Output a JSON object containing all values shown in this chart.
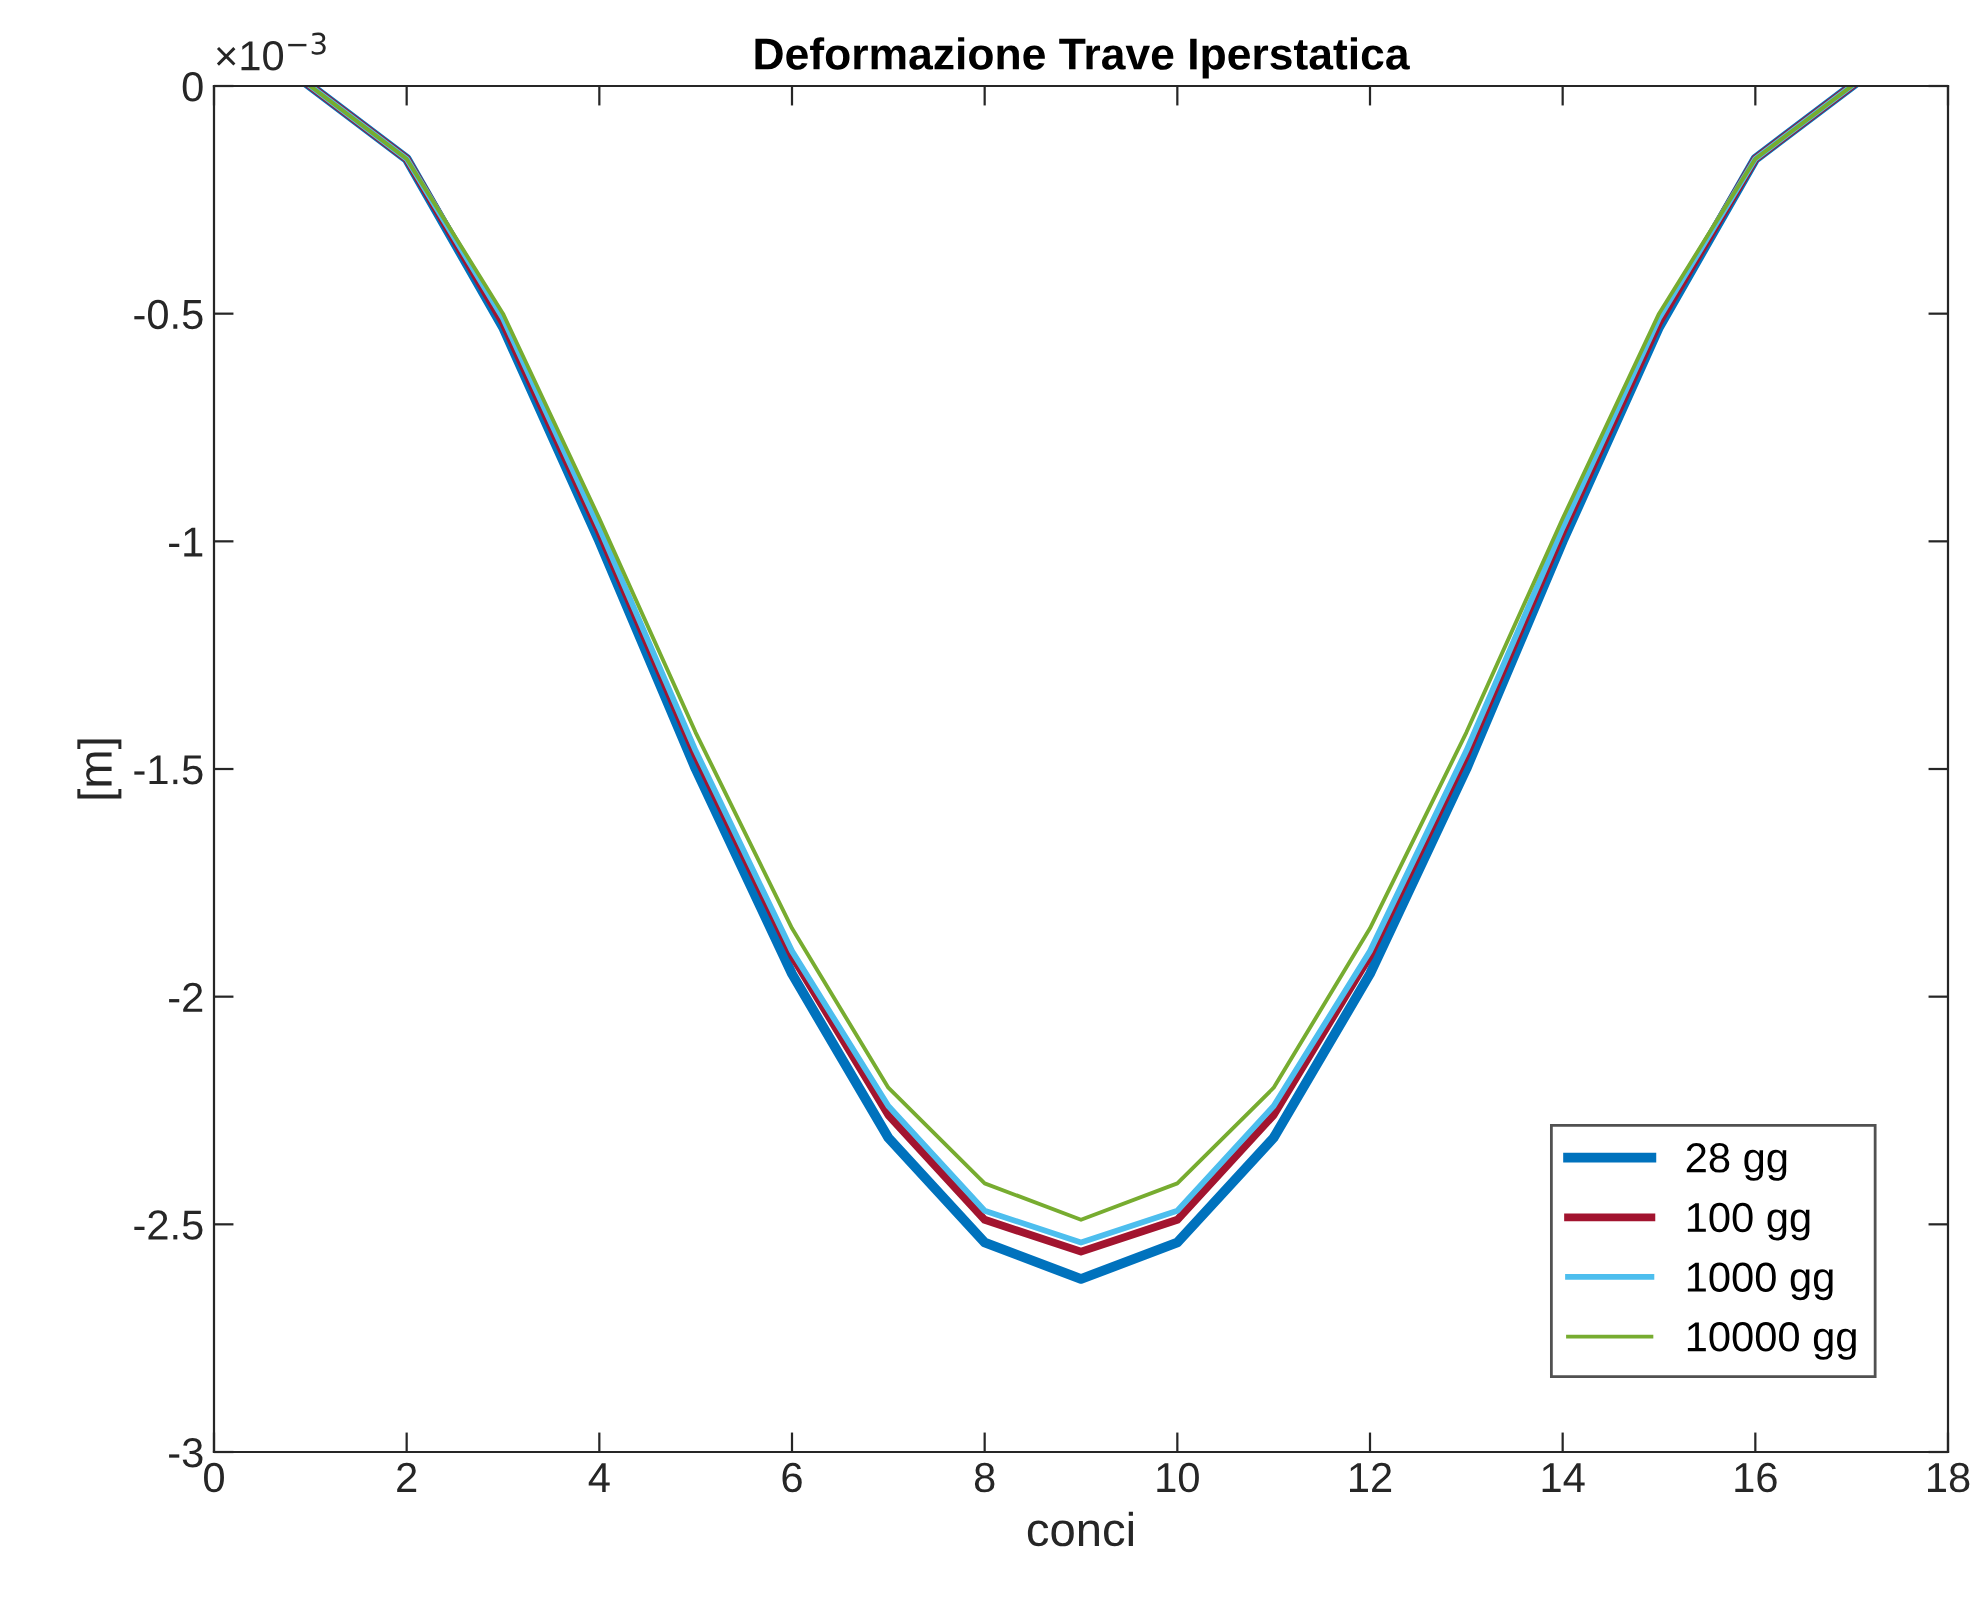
{
  "chart_data": {
    "type": "line",
    "title": "Deformazione Trave Iperstatica",
    "xlabel": "conci",
    "ylabel": "[m]",
    "x": [
      1,
      2,
      3,
      4,
      5,
      6,
      7,
      8,
      9,
      10,
      11,
      12,
      13,
      14,
      15,
      16,
      17
    ],
    "series": [
      {
        "name": "28 gg",
        "color": "#0072bd",
        "values": [
          0,
          -0.16,
          -0.53,
          -1.0,
          -1.5,
          -1.95,
          -2.31,
          -2.54,
          -2.62,
          -2.54,
          -2.31,
          -1.95,
          -1.5,
          -1.0,
          -0.53,
          -0.16,
          0
        ]
      },
      {
        "name": "100 gg",
        "color": "#a2142f",
        "values": [
          0,
          -0.16,
          -0.52,
          -0.98,
          -1.47,
          -1.91,
          -2.26,
          -2.49,
          -2.56,
          -2.49,
          -2.26,
          -1.91,
          -1.47,
          -0.98,
          -0.52,
          -0.16,
          0
        ]
      },
      {
        "name": "1000 gg",
        "color": "#4dbeee",
        "values": [
          0,
          -0.16,
          -0.51,
          -0.97,
          -1.46,
          -1.9,
          -2.24,
          -2.47,
          -2.54,
          -2.47,
          -2.24,
          -1.9,
          -1.46,
          -0.97,
          -0.51,
          -0.16,
          0
        ]
      },
      {
        "name": "10000 gg",
        "color": "#77ac30",
        "values": [
          0,
          -0.16,
          -0.5,
          -0.95,
          -1.42,
          -1.85,
          -2.2,
          -2.41,
          -2.49,
          -2.41,
          -2.2,
          -1.85,
          -1.42,
          -0.95,
          -0.5,
          -0.16,
          0
        ]
      }
    ],
    "annotations": [
      "×10$^{−3}$"
    ],
    "xlim": [
      0,
      18
    ],
    "xticks": [
      0,
      2,
      4,
      6,
      8,
      10,
      12,
      14,
      16,
      18
    ],
    "ylim": [
      -3,
      0
    ],
    "yticks": [
      -3,
      -2.5,
      -2,
      -1.5,
      -1,
      -0.5,
      0
    ],
    "grid": false,
    "legend": "bottom right",
    "marker": "none",
    "line_style": "solid"
  }
}
